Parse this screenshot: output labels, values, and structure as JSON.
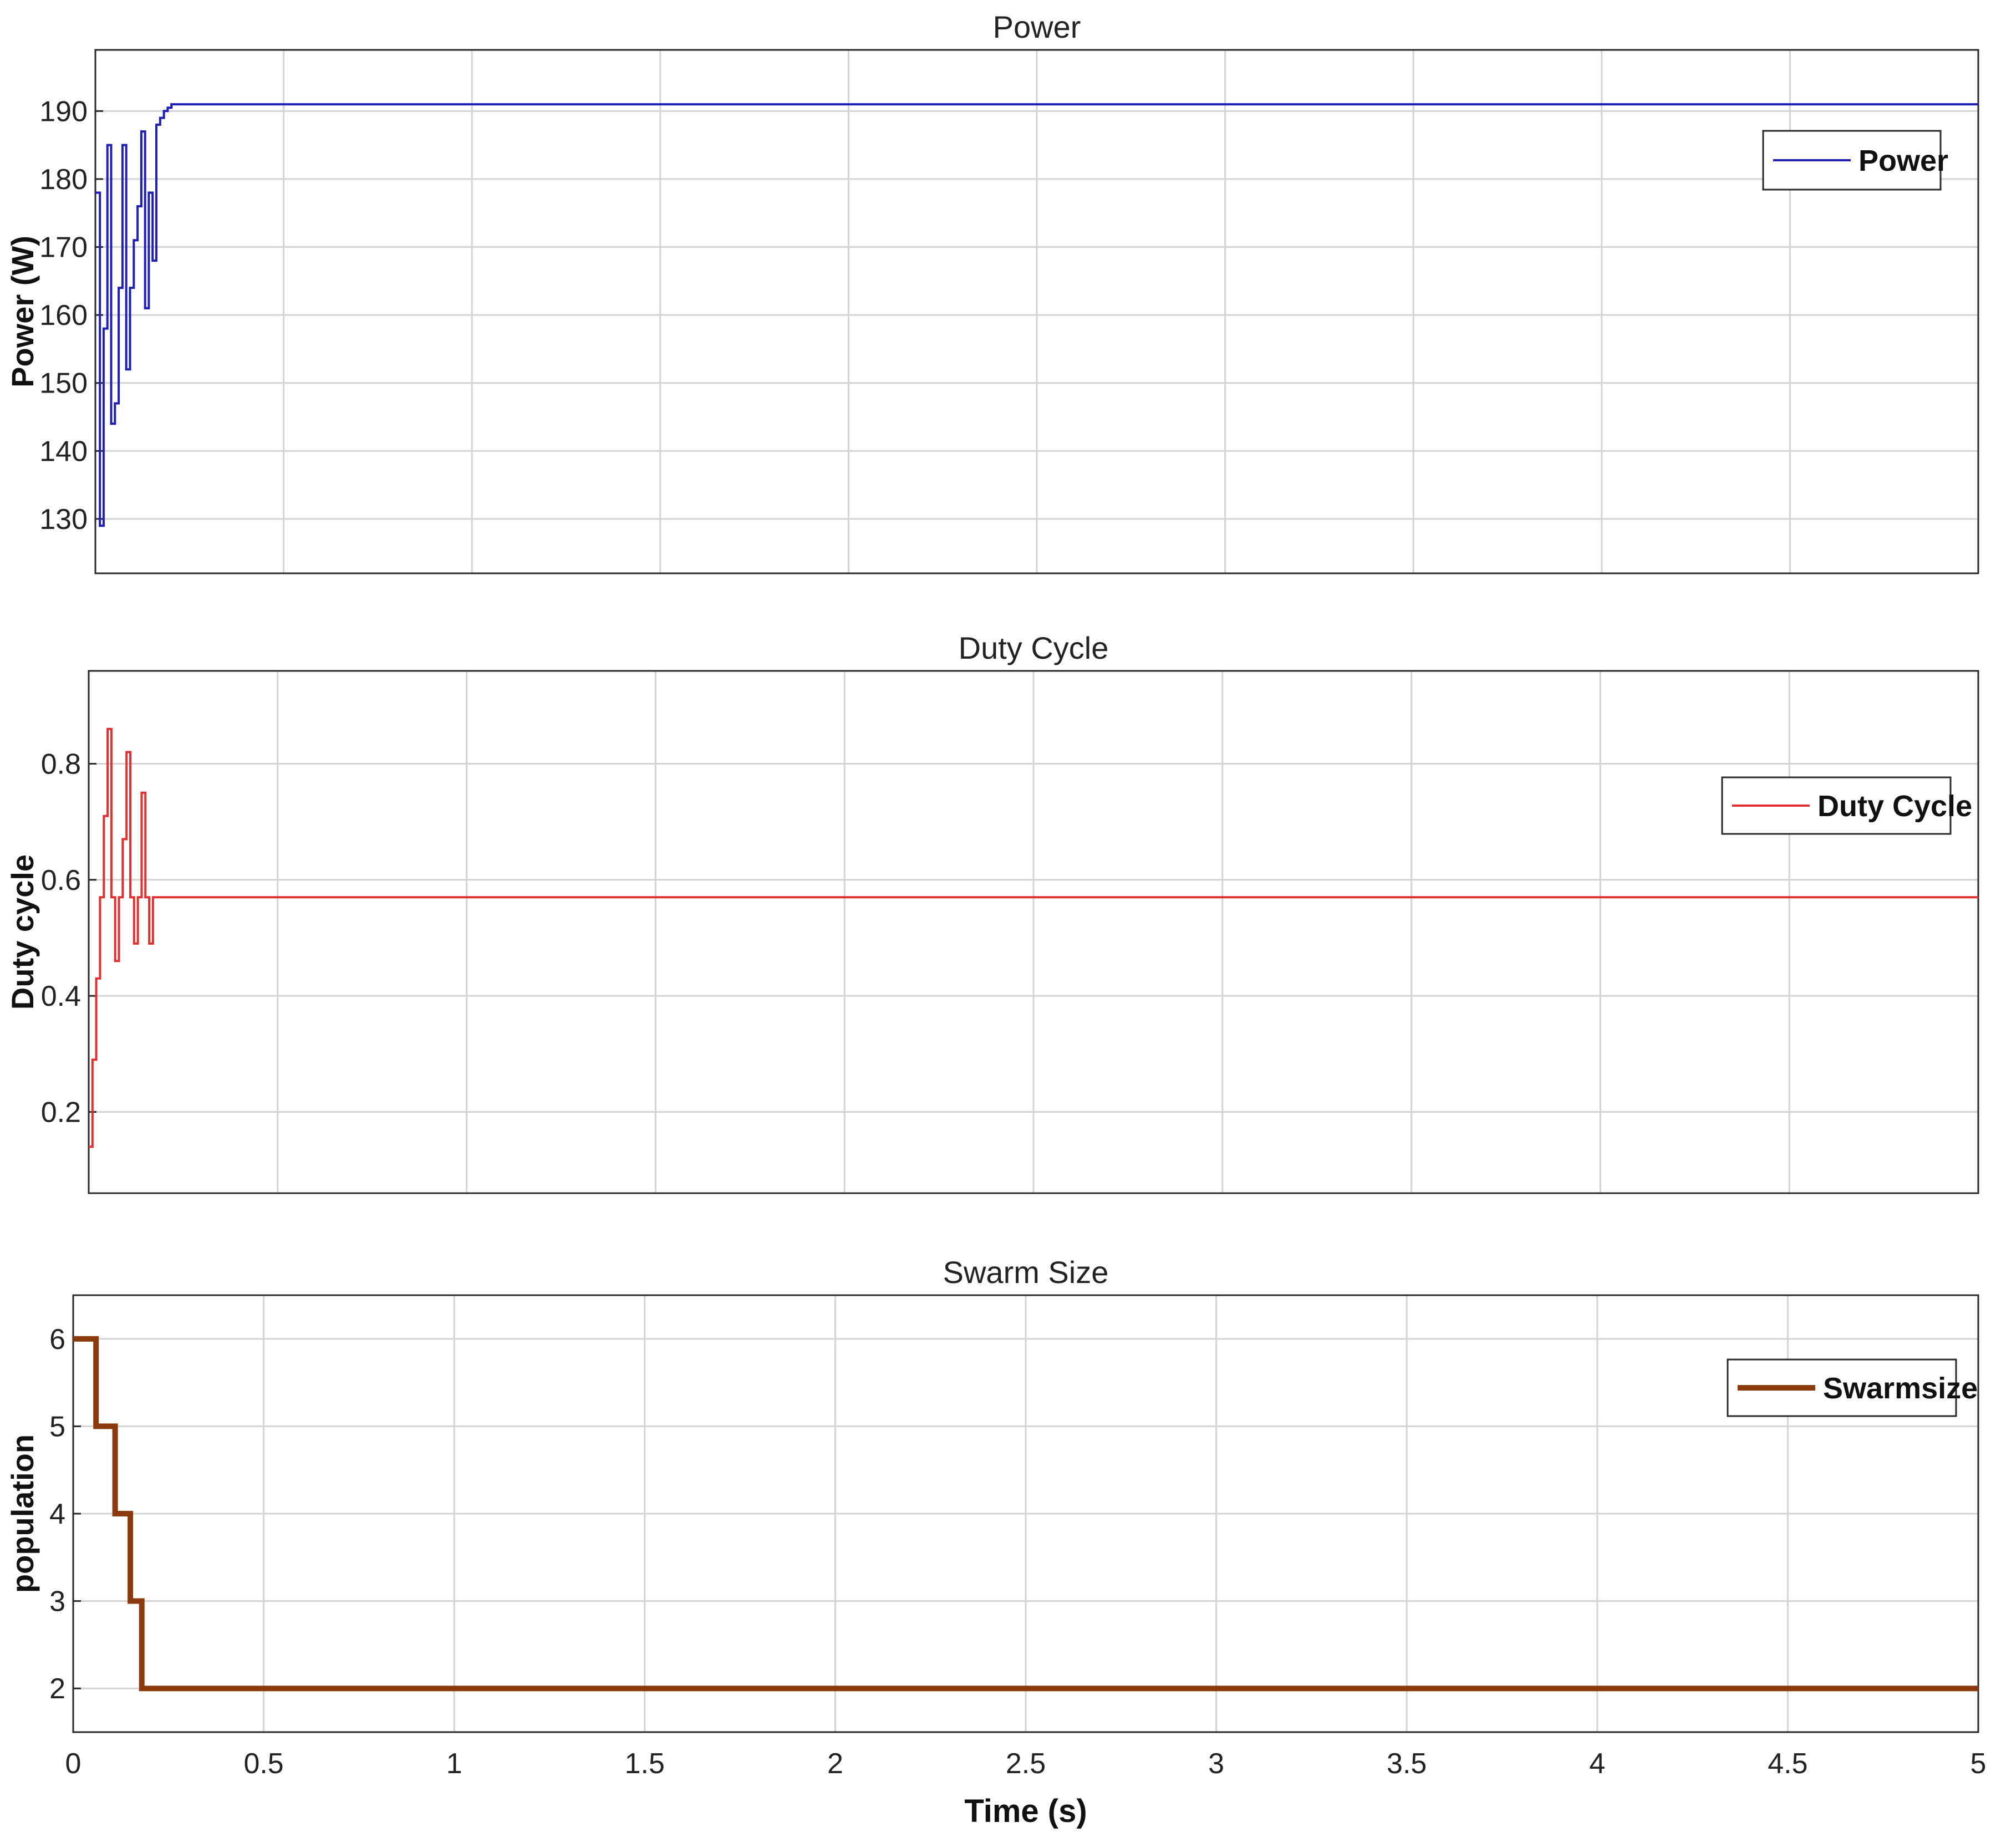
{
  "chart_data": [
    {
      "type": "line",
      "title": "Power",
      "xlabel": "",
      "ylabel": "Power (W)",
      "xlim": [
        0,
        5
      ],
      "ylim": [
        122,
        199
      ],
      "yticks": [
        130,
        140,
        150,
        160,
        170,
        180,
        190
      ],
      "xticks": [
        0.5,
        1,
        1.5,
        2,
        2.5,
        3,
        3.5,
        4,
        4.5
      ],
      "xticklabels": [],
      "grid": true,
      "legend": "top-right",
      "series": [
        {
          "name": "Power",
          "color": "#1f1fb4",
          "step": true,
          "x": [
            0.0,
            0.012,
            0.022,
            0.032,
            0.042,
            0.052,
            0.062,
            0.072,
            0.082,
            0.092,
            0.102,
            0.112,
            0.122,
            0.132,
            0.142,
            0.152,
            0.162,
            0.172,
            0.182,
            0.192,
            0.202,
            0.212,
            0.222,
            0.232,
            0.242,
            0.252,
            0.262,
            0.272,
            0.282,
            5.0
          ],
          "y": [
            178,
            129,
            158,
            185,
            144,
            147,
            164,
            185,
            152,
            164,
            171,
            176,
            187,
            161,
            178,
            168,
            188,
            189,
            190,
            190.5,
            191,
            191,
            191,
            191,
            191,
            191,
            191,
            191,
            191,
            191
          ]
        }
      ]
    },
    {
      "type": "line",
      "title": "Duty Cycle",
      "xlabel": "",
      "ylabel": "Duty cycle",
      "xlim": [
        0,
        5
      ],
      "ylim": [
        0.06,
        0.96
      ],
      "yticks": [
        0.2,
        0.4,
        0.6,
        0.8
      ],
      "yticklabels": [
        "0.2",
        "0.4",
        "0.6",
        "0.8"
      ],
      "xticks": [
        0.5,
        1,
        1.5,
        2,
        2.5,
        3,
        3.5,
        4,
        4.5
      ],
      "xticklabels": [],
      "grid": true,
      "legend": "top-right",
      "series": [
        {
          "name": "Duty Cycle",
          "color": "#e03030",
          "step": true,
          "x": [
            0.0,
            0.01,
            0.02,
            0.03,
            0.04,
            0.05,
            0.06,
            0.07,
            0.08,
            0.09,
            0.1,
            0.11,
            0.12,
            0.13,
            0.14,
            0.15,
            0.16,
            0.17,
            0.18,
            0.19,
            0.2,
            0.21,
            0.22,
            0.23,
            5.0
          ],
          "y": [
            0.14,
            0.29,
            0.43,
            0.57,
            0.71,
            0.86,
            0.57,
            0.46,
            0.57,
            0.67,
            0.82,
            0.57,
            0.49,
            0.57,
            0.75,
            0.57,
            0.49,
            0.57,
            0.57,
            0.57,
            0.57,
            0.57,
            0.57,
            0.57,
            0.57
          ]
        }
      ]
    },
    {
      "type": "line",
      "title": "Swarm Size",
      "xlabel": "Time (s)",
      "ylabel": "population",
      "xlim": [
        0,
        5
      ],
      "ylim": [
        1.5,
        6.5
      ],
      "yticks": [
        2,
        3,
        4,
        5,
        6
      ],
      "xticks": [
        0,
        0.5,
        1,
        1.5,
        2,
        2.5,
        3,
        3.5,
        4,
        4.5,
        5
      ],
      "xticklabels": [
        "0",
        "0.5",
        "1",
        "1.5",
        "2",
        "2.5",
        "3",
        "3.5",
        "4",
        "4.5",
        "5"
      ],
      "grid": true,
      "legend": "top-right",
      "series": [
        {
          "name": "Swarmsize",
          "color": "#8b3a0e",
          "step": true,
          "x": [
            0.0,
            0.06,
            0.11,
            0.15,
            0.18,
            5.0
          ],
          "y": [
            6,
            5,
            4,
            3,
            2,
            2
          ]
        }
      ]
    }
  ]
}
